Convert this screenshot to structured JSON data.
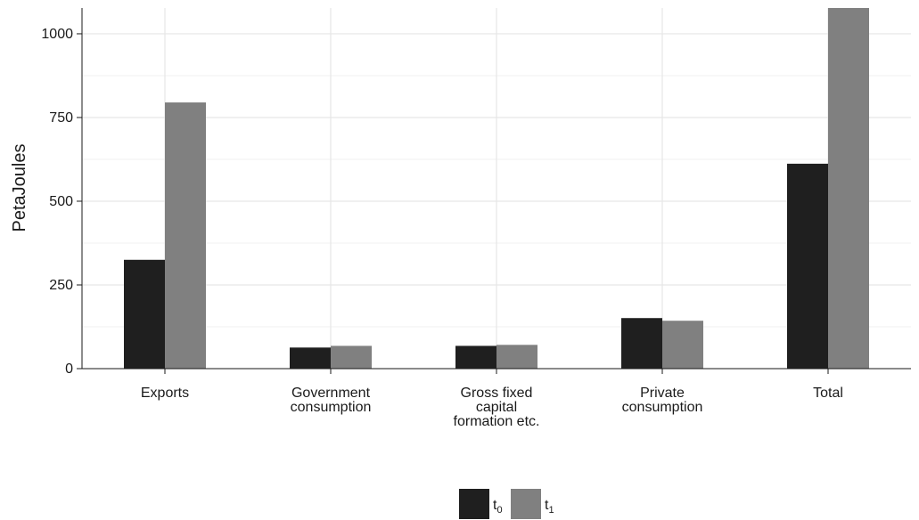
{
  "chart_data": {
    "type": "bar",
    "ylabel": "PetaJoules",
    "categories": [
      [
        "Exports"
      ],
      [
        "Government",
        "consumption"
      ],
      [
        "Gross fixed",
        "capital",
        "formation etc."
      ],
      [
        "Private",
        "consumption"
      ],
      [
        "Total"
      ]
    ],
    "series": [
      {
        "name_base": "t",
        "name_sub": "0",
        "color": "#1f1f1f",
        "values": [
          325,
          63,
          68,
          151,
          612
        ]
      },
      {
        "name_base": "t",
        "name_sub": "1",
        "color": "#808080",
        "values": [
          795,
          68,
          71,
          143,
          1077
        ]
      }
    ],
    "yticks": [
      0,
      250,
      500,
      750,
      1000
    ],
    "ylim": [
      0,
      1077
    ],
    "grid": true,
    "legend_position": "bottom-center"
  }
}
